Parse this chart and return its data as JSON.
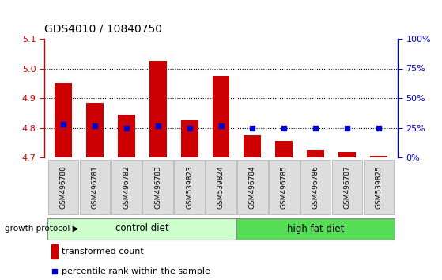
{
  "title": "GDS4010 / 10840750",
  "samples": [
    "GSM496780",
    "GSM496781",
    "GSM496782",
    "GSM496783",
    "GSM539823",
    "GSM539824",
    "GSM496784",
    "GSM496785",
    "GSM496786",
    "GSM496787",
    "GSM539825"
  ],
  "bar_values": [
    4.95,
    4.885,
    4.845,
    5.025,
    4.825,
    4.975,
    4.775,
    4.755,
    4.725,
    4.72,
    4.705
  ],
  "percentile_values": [
    28,
    27,
    25,
    27,
    25,
    27,
    25,
    25,
    25,
    25,
    25
  ],
  "ylim": [
    4.7,
    5.1
  ],
  "y2lim": [
    0,
    100
  ],
  "yticks": [
    4.7,
    4.8,
    4.9,
    5.0,
    5.1
  ],
  "y2ticks": [
    0,
    25,
    50,
    75,
    100
  ],
  "bar_color": "#cc0000",
  "dot_color": "#0000cc",
  "bar_width": 0.55,
  "title_color": "#333333",
  "left_axis_color": "#cc0000",
  "right_axis_color": "#0000cc",
  "control_label": "control diet",
  "hfd_label": "high fat diet",
  "protocol_label": "growth protocol",
  "legend_bar_label": "transformed count",
  "legend_dot_label": "percentile rank within the sample",
  "control_indices": [
    0,
    1,
    2,
    3,
    4,
    5
  ],
  "hfd_indices": [
    6,
    7,
    8,
    9,
    10
  ],
  "control_bg": "#ccffcc",
  "hfd_bg": "#55dd55",
  "tick_box_bg": "#dddddd",
  "figsize": [
    5.59,
    3.54
  ],
  "dpi": 100
}
